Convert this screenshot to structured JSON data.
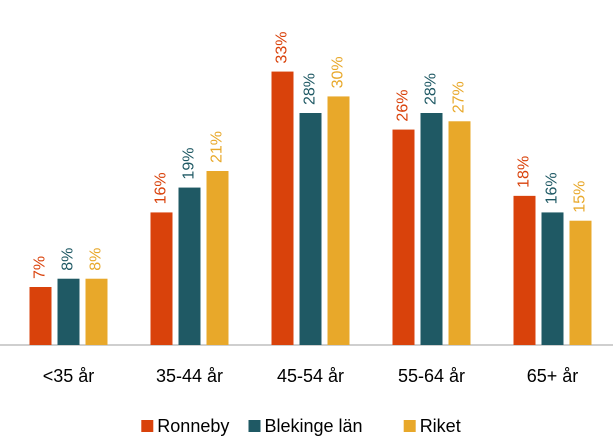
{
  "chart_data": {
    "type": "bar",
    "categories": [
      "<35 år",
      "35-44 år",
      "45-54 år",
      "55-64 år",
      "65+ år"
    ],
    "series": [
      {
        "name": "Ronneby",
        "color": "#d9420b",
        "values": [
          7,
          16,
          33,
          26,
          18
        ],
        "value_labels": [
          "7%",
          "16%",
          "33%",
          "26%",
          "18%"
        ]
      },
      {
        "name": "Blekinge län",
        "color": "#1f5964",
        "values": [
          8,
          19,
          28,
          28,
          16
        ],
        "value_labels": [
          "8%",
          "19%",
          "28%",
          "28%",
          "16%"
        ]
      },
      {
        "name": "Riket",
        "color": "#e8a82a",
        "values": [
          8,
          21,
          30,
          27,
          15
        ],
        "value_labels": [
          "8%",
          "21%",
          "30%",
          "27%",
          "15%"
        ]
      }
    ],
    "ylim": [
      0,
      35
    ]
  }
}
